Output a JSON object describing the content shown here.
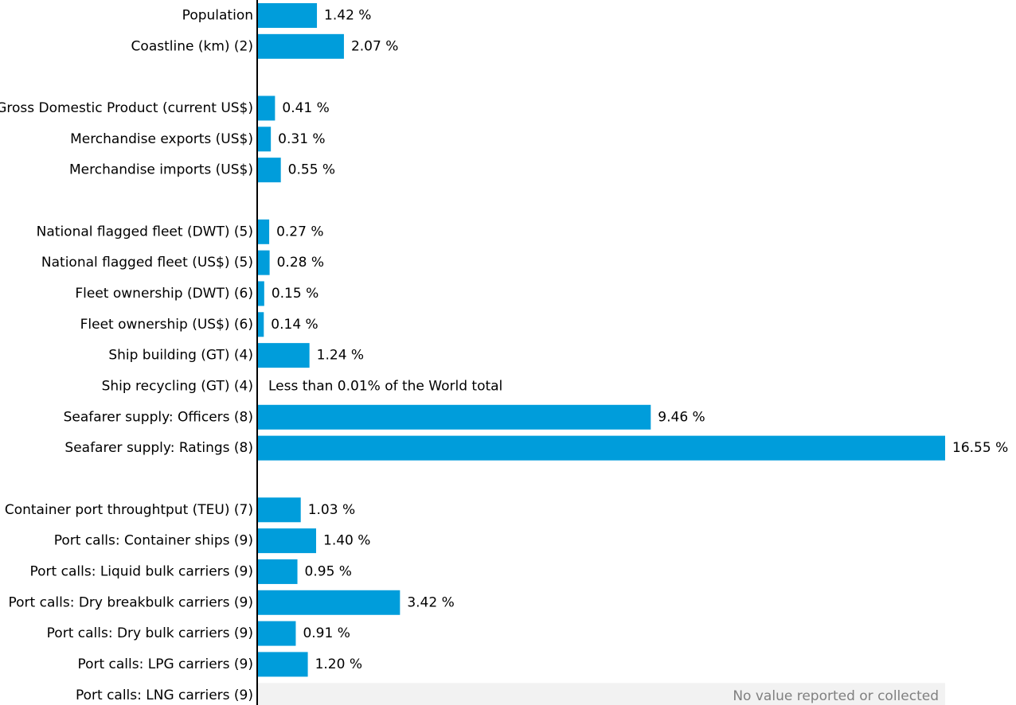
{
  "chart_data": {
    "type": "bar",
    "orientation": "horizontal",
    "title": "",
    "xlabel": "",
    "ylabel": "",
    "unit": "%",
    "grid": false,
    "legend": "none",
    "bar_color": "#009ddb",
    "placeholder_color": "#f2f2f2",
    "xlim": [
      0,
      16.55
    ],
    "categories": [
      "Population",
      "Coastline (km) (2)",
      "",
      "Gross Domestic Product (current US$)",
      "Merchandise exports (US$)",
      "Merchandise imports (US$)",
      "",
      "National flagged fleet (DWT) (5)",
      "National flagged fleet (US$) (5)",
      "Fleet ownership (DWT) (6)",
      "Fleet ownership (US$) (6)",
      "Ship building (GT) (4)",
      "Ship recycling (GT) (4)",
      "Seafarer supply: Officers (8)",
      "Seafarer supply: Ratings (8)",
      "",
      "Container port throughtput (TEU) (7)",
      "Port calls: Container ships (9)",
      "Port calls: Liquid bulk carriers (9)",
      "Port calls: Dry breakbulk carriers (9)",
      "Port calls: Dry bulk carriers (9)",
      "Port calls: LPG carriers (9)",
      "Port calls: LNG carriers (9)"
    ],
    "values": [
      1.42,
      2.07,
      null,
      0.41,
      0.31,
      0.55,
      null,
      0.27,
      0.28,
      0.15,
      0.14,
      1.24,
      null,
      9.46,
      16.55,
      null,
      1.03,
      1.4,
      0.95,
      3.42,
      0.91,
      1.2,
      null
    ],
    "value_labels": [
      "1.42 %",
      "2.07 %",
      "",
      "0.41 %",
      "0.31 %",
      "0.55 %",
      "",
      "0.27 %",
      "0.28 %",
      "0.15 %",
      "0.14 %",
      "1.24 %",
      "Less than 0.01% of the World total",
      "9.46 %",
      "16.55 %",
      "",
      "1.03 %",
      "1.40 %",
      "0.95 %",
      "3.42 %",
      "0.91 %",
      "1.20 %",
      "No value reported or collected"
    ],
    "row_kind": [
      "bar",
      "bar",
      "gap",
      "bar",
      "bar",
      "bar",
      "gap",
      "bar",
      "bar",
      "bar",
      "bar",
      "bar",
      "note",
      "bar",
      "bar",
      "gap",
      "bar",
      "bar",
      "bar",
      "bar",
      "bar",
      "bar",
      "missing"
    ]
  }
}
